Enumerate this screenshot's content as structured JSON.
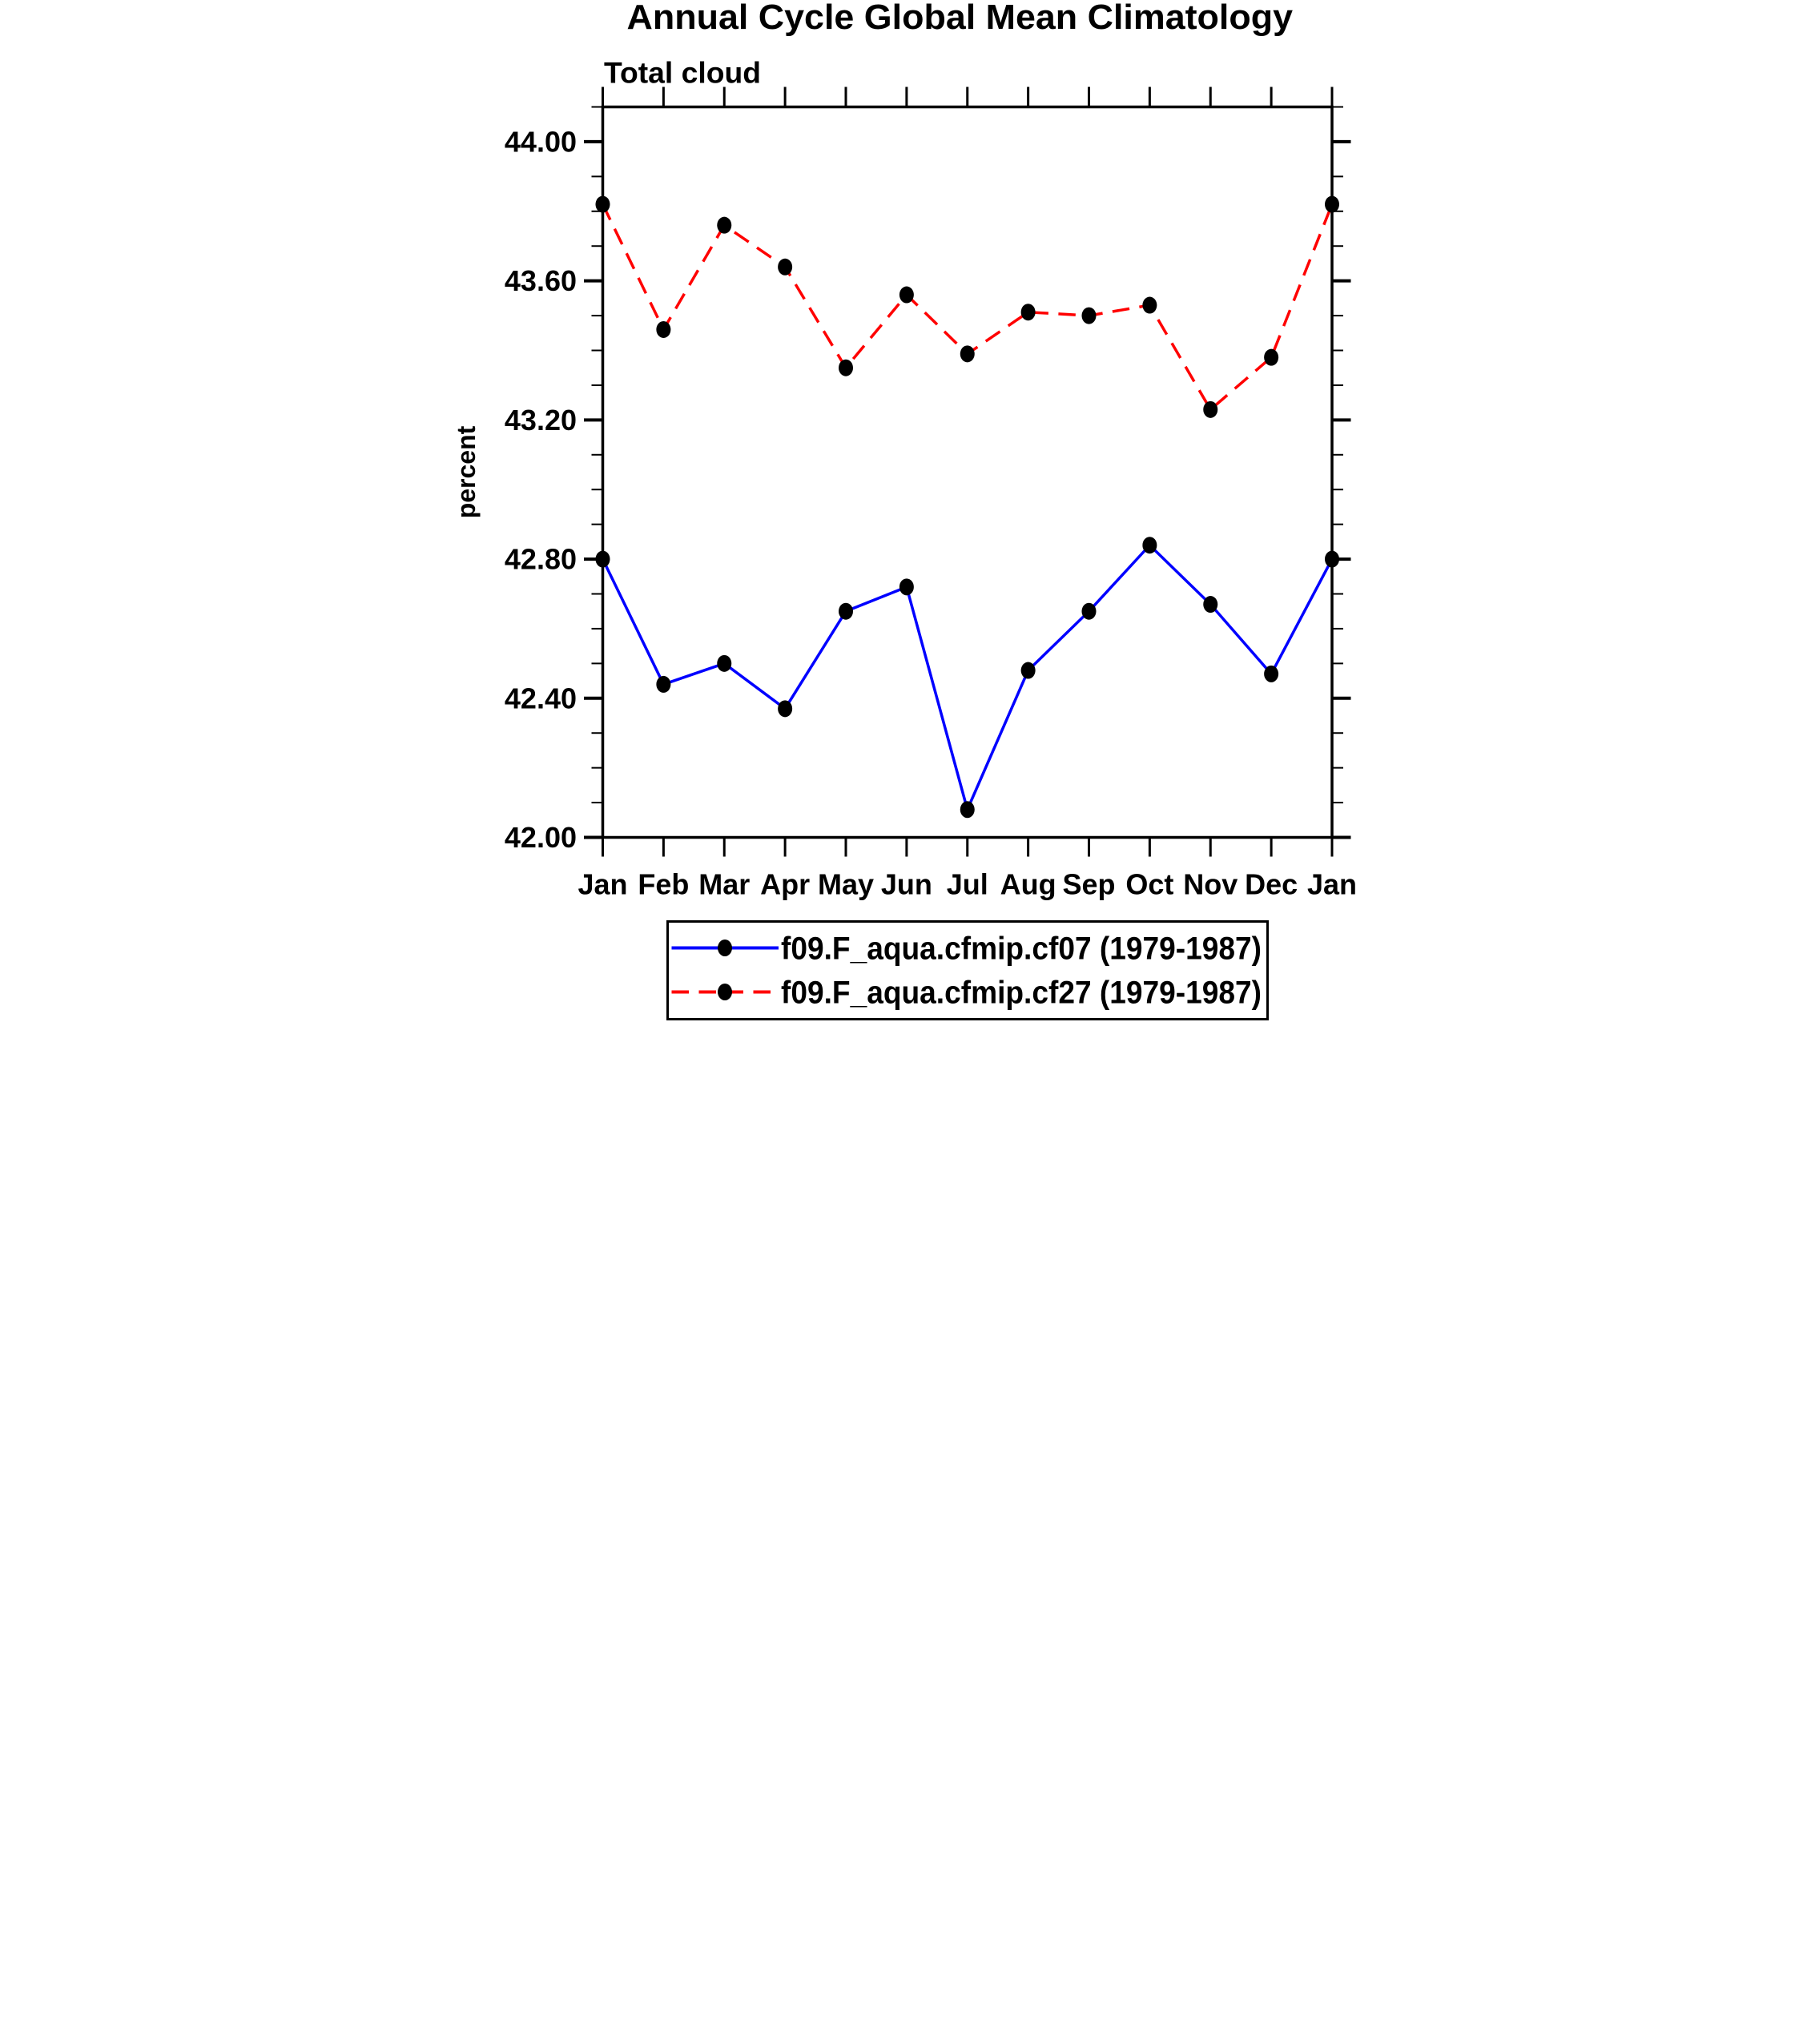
{
  "chart_data": {
    "type": "line",
    "title": "Annual Cycle Global Mean Climatology",
    "subtitle": "Total cloud",
    "ylabel": "percent",
    "x_categories": [
      "Jan",
      "Feb",
      "Mar",
      "Apr",
      "May",
      "Jun",
      "Jul",
      "Aug",
      "Sep",
      "Oct",
      "Nov",
      "Dec",
      "Jan"
    ],
    "ylim": [
      42.0,
      44.1
    ],
    "y_major_ticks": [
      42.0,
      42.4,
      42.8,
      43.2,
      43.6,
      44.0
    ],
    "y_tick_labels": [
      "42.00",
      "42.40",
      "42.80",
      "43.20",
      "43.60",
      "44.00"
    ],
    "y_minor_step": 0.1,
    "grid": false,
    "legend_position": "bottom",
    "colors": {
      "axis": "#000000",
      "background": "#ffffff",
      "marker": "#000000",
      "series1": "#0000ff",
      "series2": "#ff0000"
    },
    "series": [
      {
        "name": "f09.F_aqua.cfmip.cf07 (1979-1987)",
        "color": "#0000ff",
        "line_style": "solid",
        "marker": "filled-circle",
        "values": [
          42.8,
          42.44,
          42.5,
          42.37,
          42.65,
          42.72,
          42.08,
          42.48,
          42.65,
          42.84,
          42.67,
          42.47,
          42.8
        ]
      },
      {
        "name": "f09.F_aqua.cfmip.cf27 (1979-1987)",
        "color": "#ff0000",
        "line_style": "dashed",
        "marker": "filled-circle",
        "values": [
          43.82,
          43.46,
          43.76,
          43.64,
          43.35,
          43.56,
          43.39,
          43.51,
          43.5,
          43.53,
          43.23,
          43.38,
          43.82
        ]
      }
    ]
  }
}
